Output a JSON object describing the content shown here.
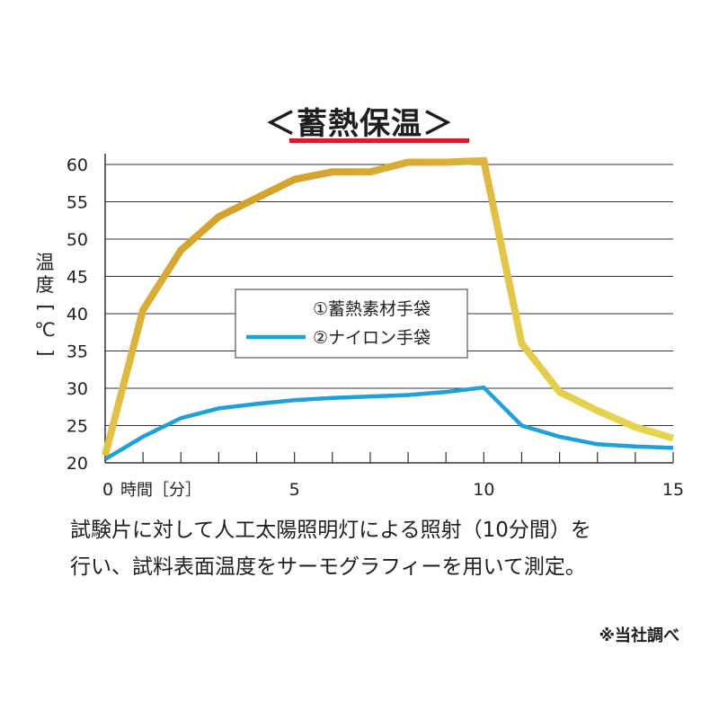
{
  "chart_data": {
    "type": "line",
    "title": "＜蓄熱保温＞",
    "ylabel_chars": [
      "温",
      "度",
      "[",
      "℃",
      "]"
    ],
    "xlabel": "時間［分］",
    "x_ticks": [
      0,
      5,
      10,
      15
    ],
    "y_ticks": [
      20,
      25,
      30,
      35,
      40,
      45,
      50,
      55,
      60
    ],
    "xlim": [
      0,
      15
    ],
    "ylim": [
      20,
      60
    ],
    "grid": true,
    "legend_position": "center",
    "series": [
      {
        "name": "①蓄熱素材手袋",
        "color": "#d9ae2a",
        "x": [
          0,
          1,
          2,
          3,
          4,
          5,
          6,
          7,
          8,
          9,
          10,
          11,
          12,
          13,
          14,
          15
        ],
        "values": [
          21,
          40.5,
          48.5,
          53,
          55.5,
          58,
          59,
          59,
          60.3,
          60.3,
          60.5,
          36,
          29.5,
          27,
          24.8,
          23.3
        ]
      },
      {
        "name": "②ナイロン手袋",
        "color": "#1fa0d8",
        "x": [
          0,
          1,
          2,
          3,
          4,
          5,
          6,
          7,
          8,
          9,
          10,
          11,
          12,
          13,
          14,
          15
        ],
        "values": [
          20.5,
          23.5,
          26,
          27.3,
          27.9,
          28.4,
          28.7,
          28.9,
          29.1,
          29.5,
          30.1,
          25,
          23.5,
          22.5,
          22.2,
          22
        ]
      }
    ]
  },
  "caption": {
    "line1": "試験片に対して人工太陽照明灯による照射（10分間）を",
    "line2": "行い、試料表面温度をサーモグラフィーを用いて測定。"
  },
  "note": "※当社調べ"
}
